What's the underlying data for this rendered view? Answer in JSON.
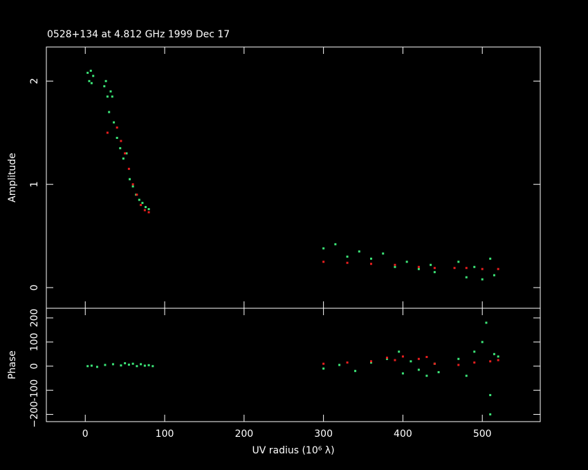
{
  "chart_data": [
    {
      "type": "scatter",
      "title": "0528+134 at 4.812 GHz 1999 Dec 17",
      "y_label": "Amplitude",
      "xlim": [
        -49,
        573
      ],
      "ylim": [
        -0.2,
        2.33
      ],
      "yticks": [
        0,
        1,
        2
      ],
      "series": [
        {
          "color": "#3ce678",
          "x": [
            3,
            5,
            7,
            8,
            10,
            24,
            26,
            28,
            30,
            32,
            34,
            36,
            40,
            44,
            48,
            52,
            56,
            60,
            64,
            68,
            72,
            76,
            80,
            300,
            315,
            330,
            345,
            360,
            375,
            390,
            405,
            420,
            435,
            440,
            470,
            480,
            490,
            500,
            510,
            515
          ],
          "values": [
            2.08,
            2.0,
            2.1,
            1.98,
            2.05,
            1.95,
            2.0,
            1.85,
            1.7,
            1.9,
            1.85,
            1.6,
            1.45,
            1.35,
            1.25,
            1.3,
            1.05,
            0.98,
            0.9,
            0.85,
            0.82,
            0.78,
            0.76,
            0.38,
            0.42,
            0.3,
            0.35,
            0.28,
            0.33,
            0.2,
            0.25,
            0.18,
            0.22,
            0.15,
            0.25,
            0.1,
            0.2,
            0.08,
            0.28,
            0.12
          ]
        },
        {
          "color": "#e81e1e",
          "x": [
            28,
            40,
            45,
            50,
            55,
            60,
            65,
            70,
            75,
            80,
            300,
            330,
            360,
            390,
            420,
            440,
            465,
            480,
            500,
            520
          ],
          "values": [
            1.5,
            1.55,
            1.42,
            1.3,
            1.15,
            1.0,
            0.9,
            0.8,
            0.75,
            0.73,
            0.25,
            0.24,
            0.23,
            0.22,
            0.2,
            0.19,
            0.19,
            0.19,
            0.18,
            0.18
          ]
        }
      ]
    },
    {
      "type": "scatter",
      "y_label": "Phase",
      "x_label": "UV radius  (10⁶ λ)",
      "xlim": [
        -49,
        573
      ],
      "xticks": [
        0,
        100,
        200,
        300,
        400,
        500
      ],
      "ylim": [
        -230,
        240
      ],
      "yticks": [
        {
          "value": -200,
          "label": "−200"
        },
        -100,
        0,
        100,
        200
      ],
      "series": [
        {
          "color": "#3ce678",
          "x": [
            3,
            8,
            15,
            25,
            35,
            45,
            50,
            55,
            60,
            65,
            70,
            75,
            80,
            85,
            300,
            320,
            340,
            360,
            380,
            395,
            400,
            410,
            420,
            430,
            440,
            445,
            470,
            480,
            490,
            500,
            505,
            510,
            515,
            520,
            510
          ],
          "values": [
            0,
            2,
            -3,
            5,
            8,
            3,
            12,
            6,
            10,
            0,
            8,
            2,
            4,
            0,
            -10,
            5,
            -20,
            15,
            30,
            60,
            -30,
            20,
            -15,
            -40,
            10,
            -25,
            30,
            -40,
            60,
            100,
            180,
            -200,
            50,
            40,
            -120
          ]
        },
        {
          "color": "#e81e1e",
          "x": [
            300,
            330,
            360,
            390,
            420,
            440,
            380,
            400,
            430,
            470,
            490,
            510,
            520
          ],
          "values": [
            10,
            15,
            20,
            25,
            30,
            10,
            35,
            40,
            38,
            5,
            15,
            20,
            25
          ]
        }
      ]
    }
  ]
}
